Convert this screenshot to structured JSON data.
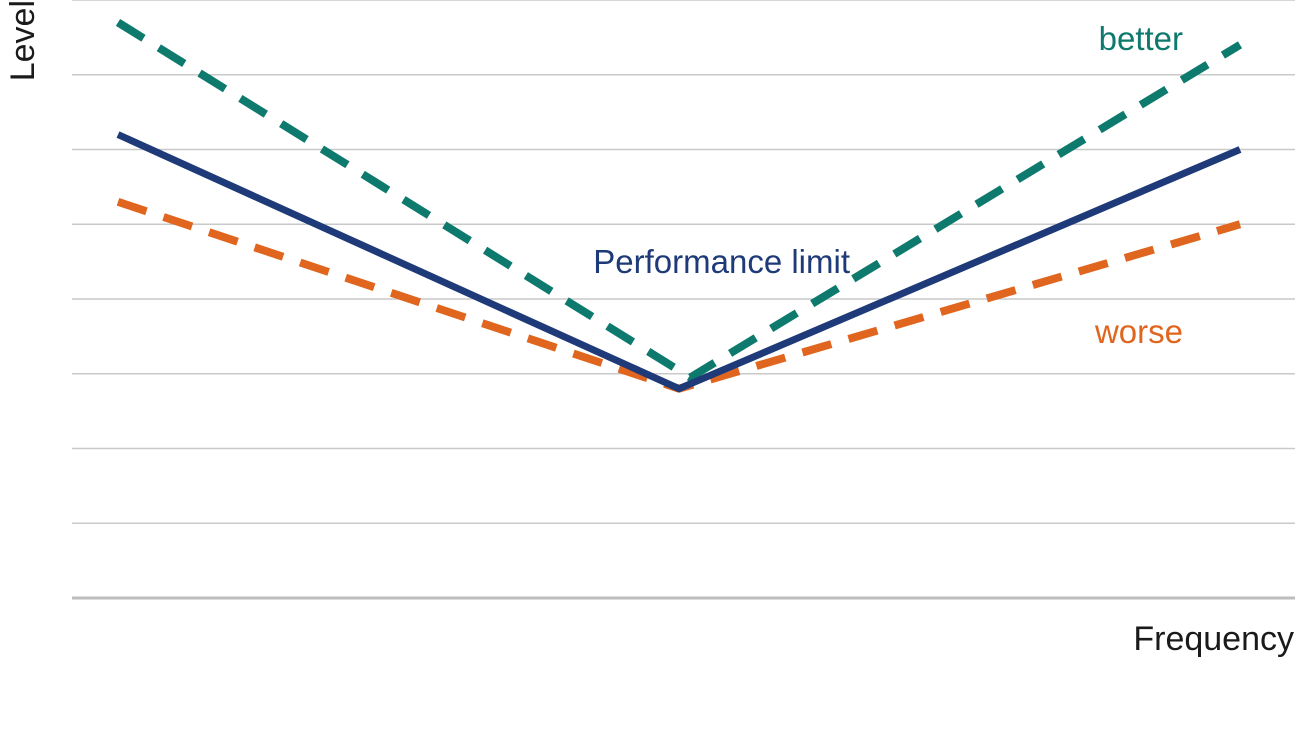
{
  "chart_data": {
    "type": "line",
    "title": "",
    "xlabel": "Frequency",
    "ylabel": "Level",
    "xlim": [
      0,
      100
    ],
    "ylim": [
      0,
      8
    ],
    "grid": true,
    "ticks_shown": false,
    "legend": "none",
    "series": [
      {
        "name": "better",
        "style": "dashed",
        "color": "#0e7a6e",
        "x": [
          0,
          51,
          100
        ],
        "y": [
          7.7,
          2.95,
          7.4
        ]
      },
      {
        "name": "Performance limit",
        "style": "solid",
        "color": "#1e3a78",
        "x": [
          0,
          50,
          100
        ],
        "y": [
          6.2,
          2.8,
          6.0
        ]
      },
      {
        "name": "worse",
        "style": "dashed",
        "color": "#e0651e",
        "x": [
          0,
          50,
          100
        ],
        "y": [
          5.3,
          2.8,
          5.0
        ]
      }
    ]
  }
}
